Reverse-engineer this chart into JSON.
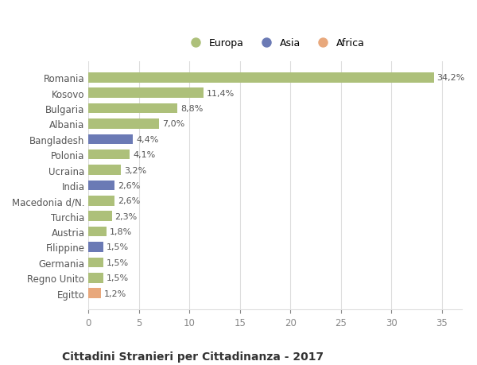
{
  "categories": [
    "Romania",
    "Kosovo",
    "Bulgaria",
    "Albania",
    "Bangladesh",
    "Polonia",
    "Ucraina",
    "India",
    "Macedonia d/N.",
    "Turchia",
    "Austria",
    "Filippine",
    "Germania",
    "Regno Unito",
    "Egitto"
  ],
  "values": [
    34.2,
    11.4,
    8.8,
    7.0,
    4.4,
    4.1,
    3.2,
    2.6,
    2.6,
    2.3,
    1.8,
    1.5,
    1.5,
    1.5,
    1.2
  ],
  "continents": [
    "Europa",
    "Europa",
    "Europa",
    "Europa",
    "Asia",
    "Europa",
    "Europa",
    "Asia",
    "Europa",
    "Europa",
    "Europa",
    "Asia",
    "Europa",
    "Europa",
    "Africa"
  ],
  "colors": {
    "Europa": "#adc07a",
    "Asia": "#6b7ab5",
    "Africa": "#e8a87c"
  },
  "labels": [
    "34,2%",
    "11,4%",
    "8,8%",
    "7,0%",
    "4,4%",
    "4,1%",
    "3,2%",
    "2,6%",
    "2,6%",
    "2,3%",
    "1,8%",
    "1,5%",
    "1,5%",
    "1,5%",
    "1,2%"
  ],
  "title": "Cittadini Stranieri per Cittadinanza - 2017",
  "xlim": [
    0,
    37
  ],
  "xticks": [
    0,
    5,
    10,
    15,
    20,
    25,
    30,
    35
  ],
  "bg_color": "#ffffff",
  "grid_color": "#dddddd",
  "bar_height": 0.65,
  "legend_labels": [
    "Europa",
    "Asia",
    "Africa"
  ]
}
